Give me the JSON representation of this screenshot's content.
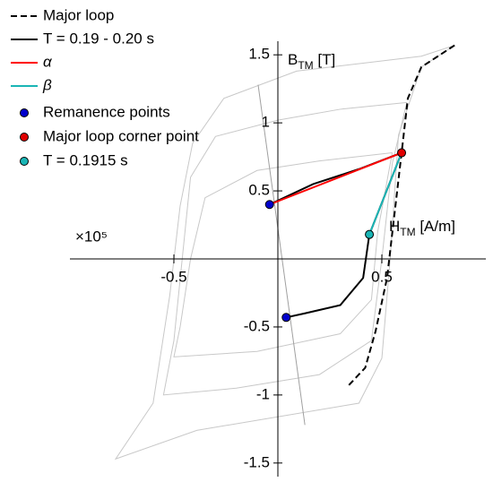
{
  "chart_data": {
    "type": "line",
    "x_multiplier": "×10⁵",
    "xlabel": {
      "main": "H",
      "sub": "TM",
      "unit": " [A/m]"
    },
    "ylabel": {
      "main": "B",
      "sub": "TM",
      "unit": " [T]"
    },
    "xlim": [
      -1,
      1
    ],
    "ylim": [
      -1.6,
      1.6
    ],
    "xticks": [
      -0.5,
      0.5
    ],
    "yticks": [
      -1.5,
      -1,
      -0.5,
      0.5,
      1,
      1.5
    ],
    "legend": "top-left",
    "background_series": [
      {
        "color": "#c8c8c8",
        "x": [
          0.85,
          0.69,
          0.09,
          -0.26,
          -0.41,
          -0.47,
          -0.52,
          -0.6,
          -0.78,
          -0.39,
          0.39,
          0.5,
          0.54,
          0.58,
          0.69,
          0.85
        ],
        "y": [
          1.57,
          1.49,
          1.38,
          1.18,
          0.85,
          0.39,
          -0.27,
          -1.06,
          -1.47,
          -1.26,
          -1.06,
          -0.73,
          0,
          0.91,
          1.41,
          1.57
        ]
      },
      {
        "color": "#c8c8c8",
        "x": [
          0.62,
          0.3,
          0,
          -0.3,
          -0.42,
          -0.46,
          -0.5,
          -0.55,
          -0.2,
          0.2,
          0.45,
          0.5,
          0.55,
          0.62
        ],
        "y": [
          1.15,
          1.1,
          1.02,
          0.9,
          0.6,
          0,
          -0.6,
          -1.0,
          -0.95,
          -0.85,
          -0.6,
          0,
          0.7,
          1.15
        ]
      },
      {
        "color": "#c8c8c8",
        "x": [
          0.55,
          0.2,
          -0.1,
          -0.35,
          -0.42,
          -0.47,
          -0.5,
          -0.1,
          0.3,
          0.45,
          0.48,
          0.55
        ],
        "y": [
          0.78,
          0.72,
          0.65,
          0.45,
          0,
          -0.5,
          -0.72,
          -0.68,
          -0.55,
          -0.3,
          0.2,
          0.78
        ]
      },
      {
        "color": "#a0a0a0",
        "x": [
          -0.095,
          0.13
        ],
        "y": [
          1.28,
          -1.22
        ]
      }
    ],
    "series": [
      {
        "name": "Major loop",
        "kind": "line",
        "dash": true,
        "color": "#000000",
        "x": [
          0.85,
          0.69,
          0.625,
          0.595,
          0.56,
          0.525,
          0.47,
          0.42,
          0.34
        ],
        "y": [
          1.57,
          1.41,
          1.18,
          0.78,
          0.32,
          -0.14,
          -0.53,
          -0.8,
          -0.93
        ]
      },
      {
        "name": "T = 0.19 - 0.20 s",
        "kind": "line",
        "dash": false,
        "color": "#000000",
        "x": [
          -0.04,
          0.17,
          0.39,
          0.595,
          0.44,
          0.41,
          0.3,
          0.13,
          0.04
        ],
        "y": [
          0.4,
          0.55,
          0.66,
          0.78,
          0.18,
          -0.14,
          -0.34,
          -0.4,
          -0.43
        ]
      },
      {
        "name": "α",
        "kind": "line",
        "dash": false,
        "color": "#ff0000",
        "x": [
          -0.04,
          0.595
        ],
        "y": [
          0.4,
          0.78
        ]
      },
      {
        "name": "β",
        "kind": "line",
        "dash": false,
        "color": "#1ab5b5",
        "x": [
          0.44,
          0.595
        ],
        "y": [
          0.18,
          0.78
        ]
      },
      {
        "name": "Remanence points",
        "kind": "marker",
        "color": "#0000cc",
        "x": [
          -0.04,
          0.04
        ],
        "y": [
          0.4,
          -0.43
        ]
      },
      {
        "name": "Major loop corner point",
        "kind": "marker",
        "color": "#e00000",
        "x": [
          0.595
        ],
        "y": [
          0.78
        ]
      },
      {
        "name": "T = 0.1915 s",
        "kind": "marker",
        "color": "#1ab5b5",
        "x": [
          0.44
        ],
        "y": [
          0.18
        ]
      }
    ]
  }
}
